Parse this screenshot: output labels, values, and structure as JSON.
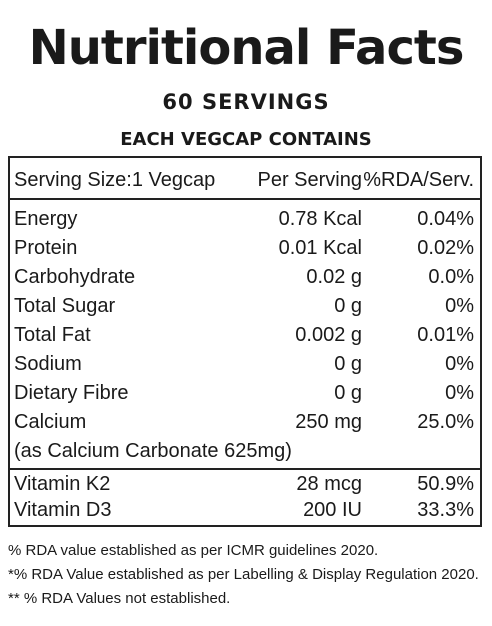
{
  "title": "Nutritional Facts",
  "servings": "60 SERVINGS",
  "subheading": "EACH VEGCAP CONTAINS",
  "table": {
    "headers": [
      "Serving Size:1 Vegcap",
      "Per Serving",
      "%RDA/Serv."
    ],
    "rows": [
      {
        "name": "Energy",
        "amount": "0.78  Kcal",
        "rda": "0.04%"
      },
      {
        "name": "Protein",
        "amount": "0.01  Kcal",
        "rda": "0.02%"
      },
      {
        "name": "Carbohydrate",
        "amount": "0.02 g",
        "rda": "0.0%"
      },
      {
        "name": "Total Sugar",
        "amount": "0 g",
        "rda": "0%"
      },
      {
        "name": "Total Fat",
        "amount": "0.002 g",
        "rda": "0.01%"
      },
      {
        "name": "Sodium",
        "amount": "0 g",
        "rda": "0%"
      },
      {
        "name": "Dietary Fibre",
        "amount": "0 g",
        "rda": "0%"
      },
      {
        "name": "Calcium",
        "amount": "250 mg",
        "rda": "25.0%"
      },
      {
        "name": "(as Calcium Carbonate 625mg)",
        "amount": "",
        "rda": ""
      },
      {
        "name": "Vitamin K2",
        "amount": "28  mcg",
        "rda": "50.9%"
      },
      {
        "name": "Vitamin D3",
        "amount": "200 IU",
        "rda": "33.3%"
      }
    ]
  },
  "notes": [
    "% RDA value established as per ICMR guidelines 2020.",
    "*% RDA Value established as per Labelling & Display Regulation 2020.",
    "** % RDA Values not established."
  ]
}
